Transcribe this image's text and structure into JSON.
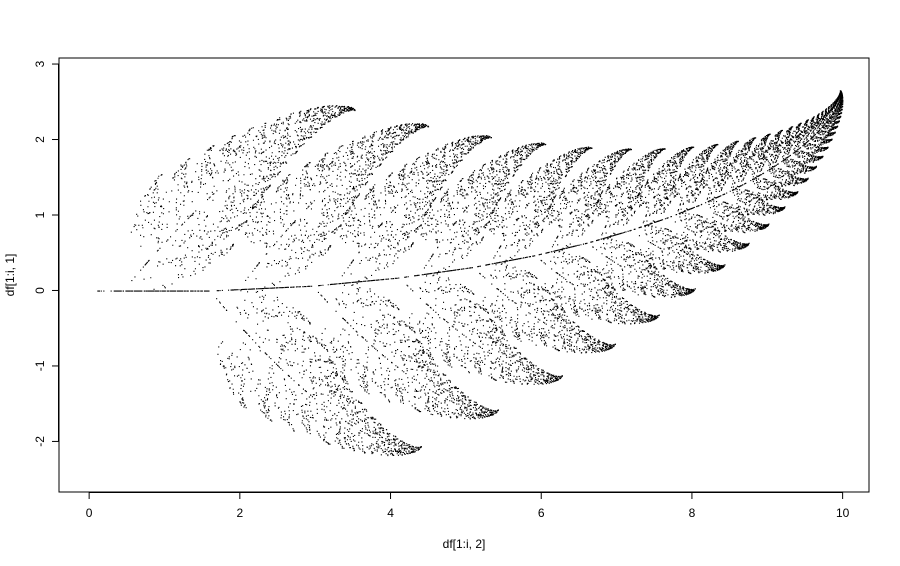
{
  "chart_data": {
    "type": "scatter",
    "title": "",
    "xlabel": "df[1:i, 2]",
    "ylabel": "df[1:i, 1]",
    "xlim": [
      -0.4,
      10.35
    ],
    "ylim": [
      -2.67,
      3.08
    ],
    "xticks": [
      0,
      2,
      4,
      6,
      8,
      10
    ],
    "yticks": [
      -2,
      -1,
      0,
      1,
      2,
      3
    ],
    "xtick_labels": [
      "0",
      "2",
      "4",
      "6",
      "8",
      "10"
    ],
    "ytick_labels": [
      "-2",
      "-1",
      "0",
      "1",
      "2",
      "3"
    ],
    "grid": false,
    "point_color": "#000000",
    "point_style": "small dot",
    "description_of_shape": "Barnsley fern rotated 90 degrees: main stem along y=0 from x=0 curving up to (9.95, 2.6); leaflets alternate above and below the stem",
    "stem": {
      "straight_segment": [
        [
          0,
          0
        ],
        [
          1.65,
          0
        ]
      ],
      "curve_samples": [
        [
          1.65,
          0
        ],
        [
          3,
          0.06
        ],
        [
          4,
          0.15
        ],
        [
          5,
          0.28
        ],
        [
          6,
          0.48
        ],
        [
          7,
          0.72
        ],
        [
          8,
          1.05
        ],
        [
          9,
          1.55
        ],
        [
          9.7,
          2.15
        ],
        [
          9.95,
          2.6
        ]
      ]
    },
    "leaflet_midribs": [
      [
        [
          0.45,
          0
        ],
        [
          1.3,
          0.9
        ],
        [
          2.3,
          1.8
        ],
        [
          3.4,
          2.4
        ]
      ],
      [
        [
          1.65,
          0
        ],
        [
          2.4,
          -0.8
        ],
        [
          3.3,
          -1.5
        ],
        [
          4.3,
          -2.1
        ]
      ],
      [
        [
          2.0,
          0.05
        ],
        [
          2.8,
          0.9
        ],
        [
          3.7,
          1.7
        ],
        [
          4.5,
          2.2
        ]
      ],
      [
        [
          3.0,
          0.06
        ],
        [
          3.7,
          -0.6
        ],
        [
          4.5,
          -1.1
        ],
        [
          5.3,
          -1.6
        ]
      ],
      [
        [
          3.3,
          0.1
        ],
        [
          4.0,
          0.9
        ],
        [
          4.8,
          1.6
        ],
        [
          5.5,
          2.05
        ]
      ],
      [
        [
          4.1,
          0.14
        ],
        [
          4.9,
          -0.5
        ],
        [
          5.7,
          -0.95
        ],
        [
          6.2,
          -1.15
        ]
      ],
      [
        [
          4.5,
          0.2
        ],
        [
          5.2,
          0.9
        ],
        [
          5.9,
          1.6
        ],
        [
          6.1,
          1.95
        ]
      ],
      [
        [
          5.2,
          0.3
        ],
        [
          6.0,
          -0.25
        ],
        [
          6.8,
          -0.65
        ],
        [
          6.9,
          -0.75
        ]
      ],
      [
        [
          5.5,
          0.38
        ],
        [
          6.1,
          1.0
        ],
        [
          6.7,
          1.6
        ],
        [
          6.7,
          1.9
        ]
      ],
      [
        [
          6.1,
          0.5
        ],
        [
          6.9,
          0.05
        ],
        [
          7.5,
          -0.3
        ],
        [
          7.6,
          -0.35
        ]
      ],
      [
        [
          6.5,
          0.6
        ],
        [
          7.0,
          1.2
        ],
        [
          7.4,
          1.8
        ],
        [
          7.4,
          1.9
        ]
      ],
      [
        [
          7.1,
          0.78
        ],
        [
          7.8,
          0.4
        ],
        [
          8.3,
          0.3
        ],
        [
          8.3,
          0.3
        ]
      ],
      [
        [
          7.4,
          0.9
        ],
        [
          7.8,
          1.45
        ],
        [
          8.1,
          1.85
        ],
        [
          8.1,
          1.9
        ]
      ],
      [
        [
          7.9,
          1.05
        ],
        [
          8.4,
          0.75
        ],
        [
          8.8,
          0.6
        ],
        [
          8.8,
          0.6
        ]
      ],
      [
        [
          8.2,
          1.15
        ],
        [
          8.5,
          1.6
        ],
        [
          8.7,
          1.95
        ],
        [
          8.7,
          2.0
        ]
      ],
      [
        [
          8.6,
          1.3
        ],
        [
          9.0,
          1.1
        ],
        [
          9.2,
          1.0
        ],
        [
          9.2,
          1.0
        ]
      ],
      [
        [
          8.9,
          1.45
        ],
        [
          9.1,
          1.85
        ],
        [
          9.2,
          2.05
        ],
        [
          9.2,
          2.05
        ]
      ],
      [
        [
          9.3,
          1.75
        ],
        [
          9.5,
          1.6
        ],
        [
          9.6,
          1.55
        ],
        [
          9.6,
          1.55
        ]
      ],
      [
        [
          9.4,
          1.85
        ],
        [
          9.55,
          2.15
        ],
        [
          9.6,
          2.25
        ],
        [
          9.6,
          2.25
        ]
      ]
    ]
  }
}
